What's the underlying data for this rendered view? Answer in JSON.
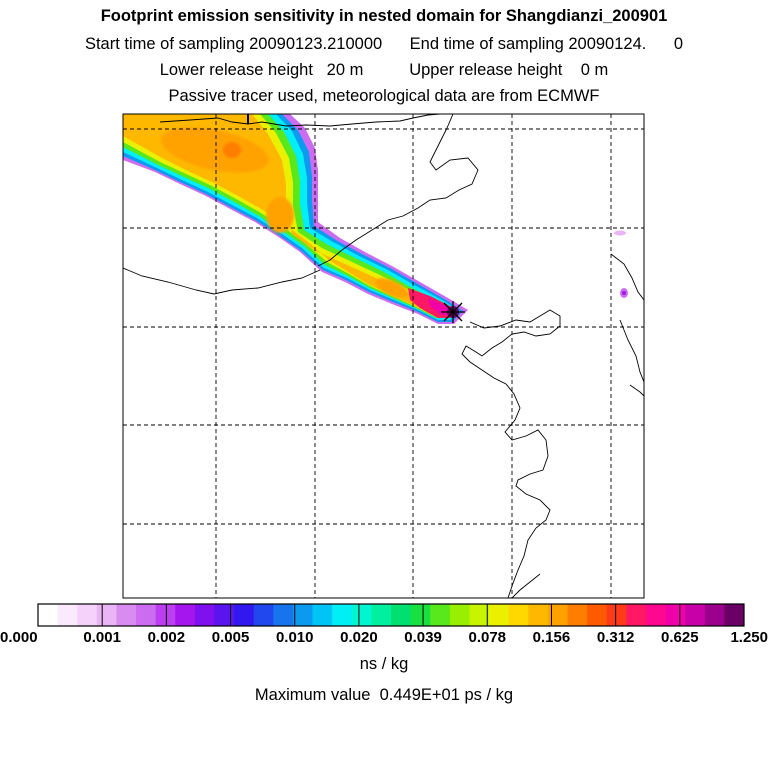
{
  "header": {
    "title": "Footprint emission sensitivity in nested domain for Shangdianzi_200901",
    "line2": "Start time of sampling 20090123.210000      End time of sampling 20090124.      0",
    "line3": "Lower release height   20 m          Upper release height    0 m",
    "line4": "Passive tracer used, meteorological data are from ECMWF"
  },
  "chart_data": {
    "type": "heatmap",
    "title": "Footprint emission sensitivity in nested domain for Shangdianzi_200901",
    "receptor": "Shangdianzi",
    "colorbar": {
      "tick_labels": [
        "0.000",
        "0.001",
        "0.002",
        "0.005",
        "0.010",
        "0.020",
        "0.039",
        "0.078",
        "0.156",
        "0.312",
        "0.625",
        "1.250"
      ],
      "unit_label": "ns / kg",
      "colors": [
        "#ffffff",
        "#fbeafd",
        "#f5d2fa",
        "#eab5f4",
        "#d98cf0",
        "#cc6cf0",
        "#bb3ff0",
        "#a516ee",
        "#8010ee",
        "#5a14ee",
        "#3018ee",
        "#2048ee",
        "#1873ee",
        "#0c9af0",
        "#00c4f5",
        "#00eef5",
        "#00f6d0",
        "#00f0a0",
        "#00e070",
        "#18e040",
        "#58e81c",
        "#98f000",
        "#c8f400",
        "#eaf000",
        "#ffd800",
        "#ffb800",
        "#ffa200",
        "#ff7e00",
        "#ff5a00",
        "#ff3a18",
        "#ff1864",
        "#ff0890",
        "#f000a8",
        "#c800a8",
        "#9a008c",
        "#6a0066"
      ]
    },
    "max_value_label": "Maximum value  0.449E+01 ps / kg",
    "grid": true
  }
}
